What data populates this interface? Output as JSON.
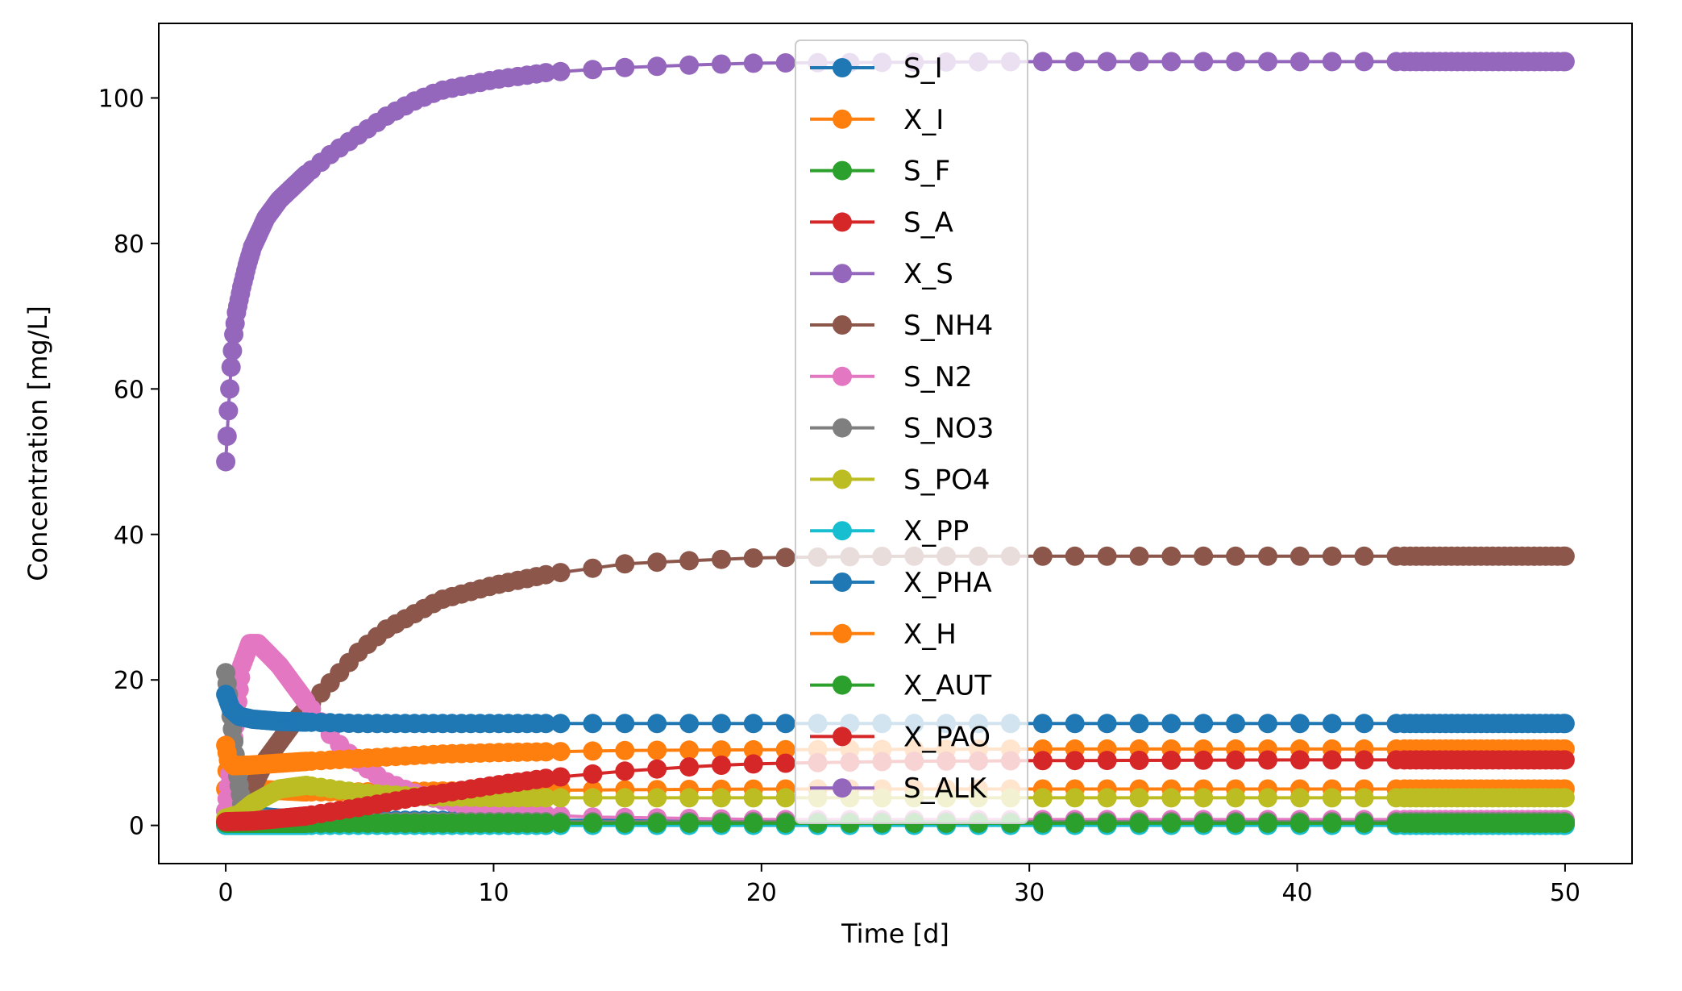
{
  "chart_data": {
    "type": "line",
    "title": "",
    "xlabel": "Time [d]",
    "ylabel": "Concentration [mg/L]",
    "xlim": [
      -2.5,
      52.5
    ],
    "ylim": [
      -5.25,
      110.25
    ],
    "xticks": [
      0,
      10,
      20,
      30,
      40,
      50
    ],
    "yticks": [
      0,
      20,
      40,
      60,
      80,
      100
    ],
    "grid": false,
    "legend_position": "top-center",
    "marker": "circle",
    "series": [
      {
        "name": "S_I",
        "color": "#1f77b4",
        "points": [
          [
            0,
            2
          ],
          [
            0.1,
            2
          ],
          [
            0.5,
            1.5
          ],
          [
            2,
            1
          ],
          [
            5,
            0.7
          ],
          [
            10,
            0.7
          ],
          [
            20,
            0.7
          ],
          [
            30,
            0.7
          ],
          [
            40,
            0.7
          ],
          [
            50,
            0.7
          ]
        ]
      },
      {
        "name": "X_I",
        "color": "#ff7f0e",
        "points": [
          [
            0,
            5
          ],
          [
            0.1,
            10
          ],
          [
            0.3,
            6
          ],
          [
            1,
            5
          ],
          [
            3,
            4.6
          ],
          [
            5,
            4.6
          ],
          [
            10,
            4.8
          ],
          [
            20,
            5
          ],
          [
            30,
            5
          ],
          [
            40,
            5
          ],
          [
            50,
            5
          ]
        ]
      },
      {
        "name": "S_F",
        "color": "#2ca02c",
        "points": [
          [
            0,
            0.2
          ],
          [
            0.5,
            0.2
          ],
          [
            2,
            0.1
          ],
          [
            5,
            0.1
          ],
          [
            10,
            0.1
          ],
          [
            20,
            0.1
          ],
          [
            30,
            0.1
          ],
          [
            40,
            0.1
          ],
          [
            50,
            0.1
          ]
        ]
      },
      {
        "name": "S_A",
        "color": "#d62728",
        "points": [
          [
            0,
            0.3
          ],
          [
            0.5,
            0.3
          ],
          [
            2,
            0.2
          ],
          [
            5,
            0.1
          ],
          [
            10,
            0.1
          ],
          [
            20,
            0.1
          ],
          [
            30,
            0.1
          ],
          [
            40,
            0.1
          ],
          [
            50,
            0.1
          ]
        ]
      },
      {
        "name": "X_S",
        "color": "#9467bd",
        "points": [
          [
            0,
            0.5
          ],
          [
            1,
            0.5
          ],
          [
            5,
            0.4
          ],
          [
            10,
            0.4
          ],
          [
            20,
            0.4
          ],
          [
            30,
            0.4
          ],
          [
            40,
            0.4
          ],
          [
            50,
            0.4
          ]
        ]
      },
      {
        "name": "S_NH4",
        "color": "#8c564b",
        "points": [
          [
            0,
            0
          ],
          [
            0.7,
            3
          ],
          [
            1.5,
            9
          ],
          [
            2.5,
            14
          ],
          [
            4,
            20
          ],
          [
            5,
            24
          ],
          [
            6,
            27
          ],
          [
            8,
            31
          ],
          [
            10,
            33
          ],
          [
            12,
            34.5
          ],
          [
            15,
            36
          ],
          [
            18,
            36.5
          ],
          [
            20,
            36.8
          ],
          [
            25,
            37
          ],
          [
            30,
            37
          ],
          [
            40,
            37
          ],
          [
            50,
            37
          ]
        ]
      },
      {
        "name": "S_N2",
        "color": "#e377c2",
        "points": [
          [
            0,
            2
          ],
          [
            0.3,
            12
          ],
          [
            0.6,
            22
          ],
          [
            0.9,
            25
          ],
          [
            1.2,
            25
          ],
          [
            2,
            22
          ],
          [
            3,
            17
          ],
          [
            4,
            12
          ],
          [
            5,
            8.5
          ],
          [
            6,
            6
          ],
          [
            7,
            4.5
          ],
          [
            8,
            3.5
          ],
          [
            10,
            2
          ],
          [
            13,
            1.2
          ],
          [
            20,
            0.8
          ],
          [
            30,
            0.8
          ],
          [
            40,
            0.8
          ],
          [
            50,
            0.8
          ]
        ]
      },
      {
        "name": "S_NO3",
        "color": "#7f7f7f",
        "points": [
          [
            0,
            21
          ],
          [
            0.2,
            15
          ],
          [
            0.4,
            8
          ],
          [
            0.6,
            3
          ],
          [
            1,
            1
          ],
          [
            2,
            0.7
          ],
          [
            5,
            0.5
          ],
          [
            10,
            0.5
          ],
          [
            20,
            0.5
          ],
          [
            30,
            0.5
          ],
          [
            40,
            0.5
          ],
          [
            50,
            0.5
          ]
        ]
      },
      {
        "name": "S_PO4",
        "color": "#bcbd22",
        "points": [
          [
            0,
            1
          ],
          [
            0.5,
            1.5
          ],
          [
            1,
            3
          ],
          [
            2,
            5
          ],
          [
            3,
            5.5
          ],
          [
            4,
            5
          ],
          [
            5,
            4.5
          ],
          [
            7,
            4
          ],
          [
            10,
            3.8
          ],
          [
            20,
            3.8
          ],
          [
            30,
            3.8
          ],
          [
            40,
            3.8
          ],
          [
            50,
            3.8
          ]
        ]
      },
      {
        "name": "X_PP",
        "color": "#17becf",
        "points": [
          [
            0,
            0
          ],
          [
            1,
            0
          ],
          [
            3,
            0
          ],
          [
            6,
            0
          ],
          [
            10,
            0
          ],
          [
            20,
            0
          ],
          [
            30,
            0
          ],
          [
            40,
            0
          ],
          [
            50,
            0
          ]
        ]
      },
      {
        "name": "X_PHA",
        "color": "#1f77b4",
        "points": [
          [
            0,
            18
          ],
          [
            0.2,
            16
          ],
          [
            0.5,
            15
          ],
          [
            1,
            14.6
          ],
          [
            2,
            14.3
          ],
          [
            5,
            14
          ],
          [
            10,
            14
          ],
          [
            20,
            14
          ],
          [
            30,
            14
          ],
          [
            40,
            14
          ],
          [
            50,
            14
          ]
        ]
      },
      {
        "name": "X_H",
        "color": "#ff7f0e",
        "points": [
          [
            0,
            11
          ],
          [
            0.1,
            9
          ],
          [
            0.3,
            8.2
          ],
          [
            1,
            8.3
          ],
          [
            3,
            8.8
          ],
          [
            5,
            9.2
          ],
          [
            8,
            9.8
          ],
          [
            10,
            10
          ],
          [
            15,
            10.3
          ],
          [
            20,
            10.4
          ],
          [
            30,
            10.5
          ],
          [
            40,
            10.5
          ],
          [
            50,
            10.5
          ]
        ]
      },
      {
        "name": "X_AUT",
        "color": "#2ca02c",
        "points": [
          [
            0,
            0.3
          ],
          [
            1,
            0.3
          ],
          [
            3,
            0.3
          ],
          [
            6,
            0.3
          ],
          [
            10,
            0.3
          ],
          [
            20,
            0.3
          ],
          [
            30,
            0.3
          ],
          [
            40,
            0.3
          ],
          [
            50,
            0.3
          ]
        ]
      },
      {
        "name": "X_PAO",
        "color": "#d62728",
        "points": [
          [
            0,
            0.5
          ],
          [
            1,
            0.6
          ],
          [
            3,
            1.3
          ],
          [
            5,
            2.5
          ],
          [
            7,
            3.8
          ],
          [
            10,
            5.5
          ],
          [
            12,
            6.5
          ],
          [
            15,
            7.5
          ],
          [
            18,
            8.2
          ],
          [
            20,
            8.5
          ],
          [
            25,
            8.8
          ],
          [
            30,
            8.9
          ],
          [
            40,
            9
          ],
          [
            50,
            9
          ]
        ]
      },
      {
        "name": "S_ALK",
        "color": "#9467bd",
        "points": [
          [
            0,
            50
          ],
          [
            0.1,
            57
          ],
          [
            0.2,
            63
          ],
          [
            0.3,
            67.5
          ],
          [
            0.4,
            70.5
          ],
          [
            0.6,
            74
          ],
          [
            0.8,
            77
          ],
          [
            1,
            79.5
          ],
          [
            1.5,
            83.5
          ],
          [
            2,
            86
          ],
          [
            3,
            89.5
          ],
          [
            4,
            92.5
          ],
          [
            5,
            95
          ],
          [
            6,
            97.5
          ],
          [
            7,
            99.5
          ],
          [
            8,
            101
          ],
          [
            10,
            102.5
          ],
          [
            12,
            103.5
          ],
          [
            15,
            104.2
          ],
          [
            18,
            104.6
          ],
          [
            20,
            104.8
          ],
          [
            25,
            104.9
          ],
          [
            30,
            105
          ],
          [
            40,
            105
          ],
          [
            50,
            105
          ]
        ]
      }
    ]
  }
}
